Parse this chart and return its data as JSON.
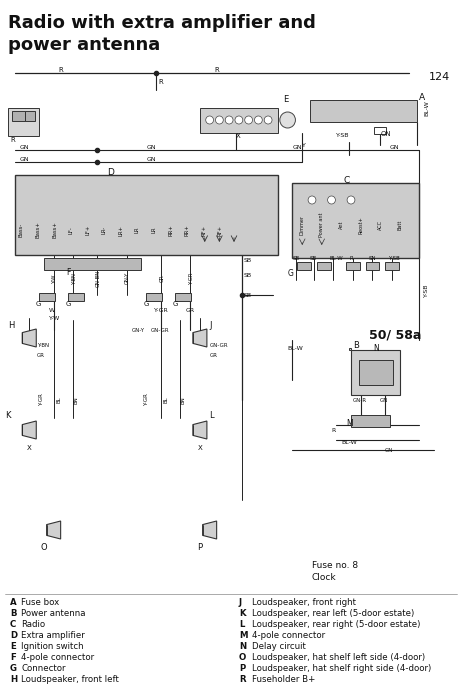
{
  "title": "Radio with extra amplifier and\npower antenna",
  "page_number": "124",
  "bg_color": "#ffffff",
  "title_fontsize": 13,
  "title_fontweight": "bold",
  "legend_items_left": [
    [
      "A",
      "Fuse box"
    ],
    [
      "B",
      "Power antenna"
    ],
    [
      "C",
      "Radio"
    ],
    [
      "D",
      "Extra amplifier"
    ],
    [
      "E",
      "Ignition switch"
    ],
    [
      "F",
      "4-pole connector"
    ],
    [
      "G",
      "Connector"
    ],
    [
      "H",
      "Loudspeaker, front left"
    ]
  ],
  "legend_items_right": [
    [
      "J",
      "Loudspeaker, front right"
    ],
    [
      "K",
      "Loudspeaker, rear left (5-door estate)"
    ],
    [
      "L",
      "Loudspeaker, rear right (5-door estate)"
    ],
    [
      "M",
      "4-pole connector"
    ],
    [
      "N",
      "Delay circuit"
    ],
    [
      "O",
      "Loudspeaker, hat shelf left side (4-door)"
    ],
    [
      "P",
      "Loudspeaker, hat shelf right side (4-door)"
    ],
    [
      "R",
      "Fuseholder B+"
    ]
  ],
  "fuse_label": "Fuse no. 8",
  "clock_label": "Clock",
  "diagram_note": "50/ 58a"
}
